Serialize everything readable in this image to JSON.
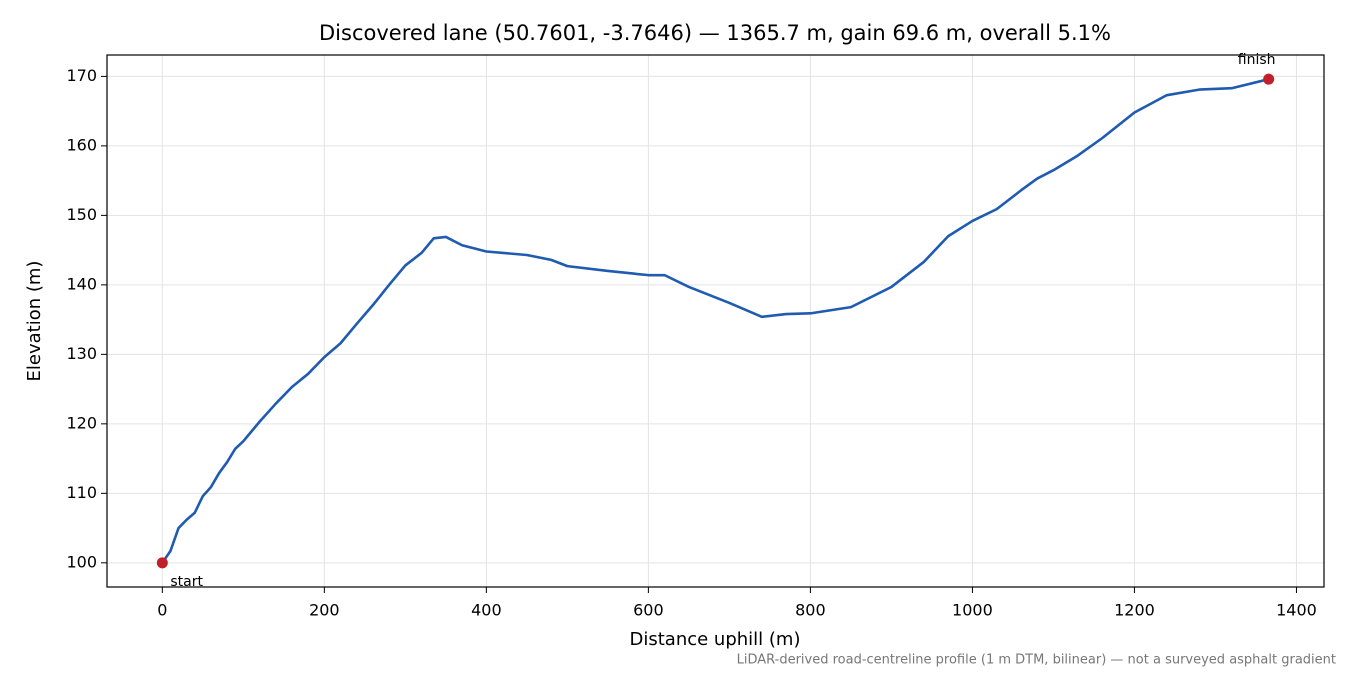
{
  "chart_data": {
    "type": "line",
    "title": "Discovered lane (50.7601, -3.7646) — 1365.7 m, gain 69.6 m, overall 5.1%",
    "x_label": "Distance uphill (m)",
    "y_label": "Elevation (m)",
    "note": "LiDAR-derived road-centreline profile (1 m DTM, bilinear) — not a surveyed asphalt gradient",
    "x": [
      0,
      10,
      20,
      30,
      40,
      50,
      60,
      70,
      80,
      90,
      100,
      120,
      140,
      160,
      180,
      200,
      220,
      240,
      260,
      280,
      300,
      320,
      335,
      350,
      370,
      400,
      450,
      480,
      500,
      550,
      600,
      620,
      650,
      700,
      740,
      770,
      800,
      850,
      900,
      940,
      970,
      1000,
      1030,
      1060,
      1080,
      1100,
      1130,
      1160,
      1200,
      1240,
      1280,
      1320,
      1365.7
    ],
    "series": [
      {
        "color": "#1f5bb0",
        "values": [
          100,
          101.7,
          105.0,
          106.2,
          107.2,
          109.6,
          110.9,
          112.9,
          114.5,
          116.4,
          117.5,
          120.3,
          122.9,
          125.3,
          127.2,
          129.6,
          131.6,
          134.4,
          137.1,
          140.0,
          142.8,
          144.6,
          146.7,
          146.9,
          145.7,
          144.8,
          144.3,
          143.6,
          142.7,
          142.0,
          141.4,
          141.4,
          139.7,
          137.4,
          135.4,
          135.8,
          135.9,
          136.8,
          139.7,
          143.3,
          147.0,
          149.2,
          150.9,
          153.6,
          155.3,
          156.5,
          158.6,
          161.1,
          164.8,
          167.3,
          168.1,
          168.3,
          169.6
        ]
      }
    ],
    "markers": [
      {
        "label": "start",
        "x": 0,
        "y": 100,
        "color": "#c0202a"
      },
      {
        "label": "finish",
        "x": 1365.7,
        "y": 169.6,
        "color": "#c0202a"
      }
    ],
    "xlim": [
      -68.3,
      1434
    ],
    "ylim": [
      96.52,
      173.08
    ],
    "xticks": [
      0,
      200,
      400,
      600,
      800,
      1000,
      1200,
      1400
    ],
    "yticks": [
      100,
      110,
      120,
      130,
      140,
      150,
      160,
      170
    ],
    "grid": true
  }
}
